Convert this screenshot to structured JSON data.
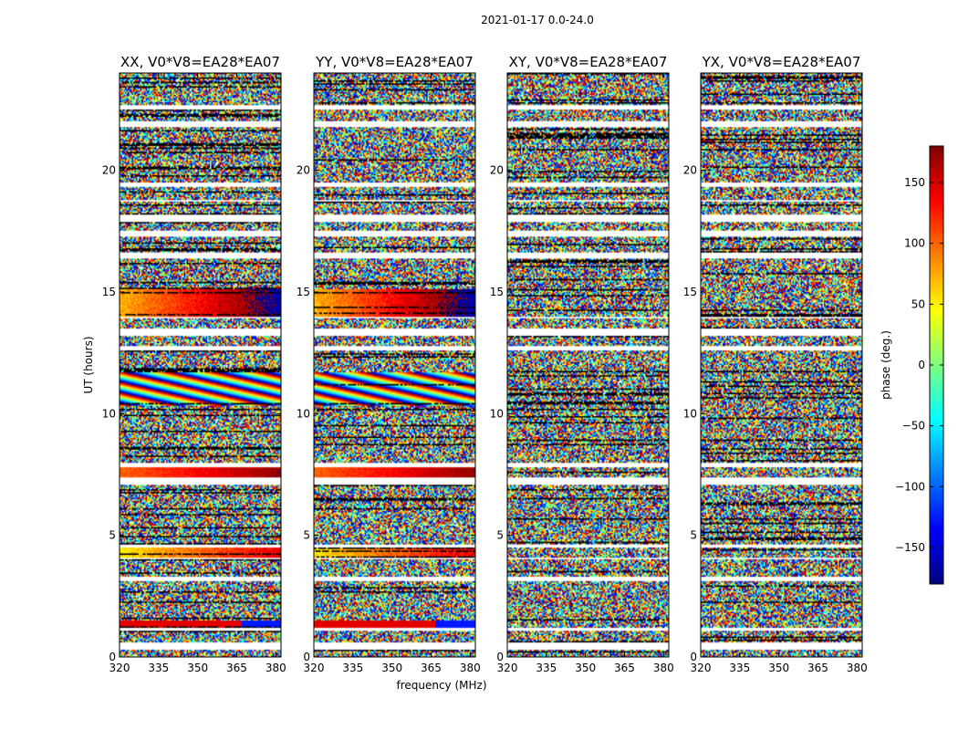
{
  "chart_data": {
    "type": "heatmap",
    "suptitle": "2021-01-17 0.0-24.0",
    "xlabel": "frequency (MHz)",
    "ylabel": "UT (hours)",
    "xlim": [
      320,
      382
    ],
    "ylim": [
      0,
      24
    ],
    "xticks": [
      320,
      335,
      350,
      365,
      380
    ],
    "yticks": [
      0,
      5,
      10,
      15,
      20
    ],
    "panels": [
      {
        "title": "XX, V0*V8=EA28*EA07",
        "pol": "XX",
        "coherent": true
      },
      {
        "title": "YY, V0*V8=EA28*EA07",
        "pol": "YY",
        "coherent": true
      },
      {
        "title": "XY, V0*V8=EA28*EA07",
        "pol": "XY",
        "coherent": false
      },
      {
        "title": "YX, V0*V8=EA28*EA07",
        "pol": "YX",
        "coherent": false
      }
    ],
    "flagged_bands_ut": [
      [
        0.3,
        0.6
      ],
      [
        1.1,
        1.2
      ],
      [
        3.1,
        3.3
      ],
      [
        4.0,
        4.1
      ],
      [
        4.5,
        4.6
      ],
      [
        7.1,
        7.4
      ],
      [
        7.8,
        8.0
      ],
      [
        12.6,
        12.8
      ],
      [
        13.2,
        13.5
      ],
      [
        13.9,
        14.0
      ],
      [
        16.4,
        16.6
      ],
      [
        17.3,
        17.5
      ],
      [
        17.9,
        18.2
      ],
      [
        18.7,
        18.8
      ],
      [
        19.3,
        19.5
      ],
      [
        21.8,
        22.0
      ],
      [
        22.5,
        22.7
      ]
    ],
    "colorbar": {
      "label": "phase (deg.)",
      "range": [
        -180,
        180
      ],
      "ticks": [
        -150,
        -100,
        -50,
        0,
        50,
        100,
        150
      ],
      "tick_labels": [
        "−150",
        "−100",
        "−50",
        "0",
        "50",
        "100",
        "150"
      ],
      "colormap": [
        "#00007f",
        "#0000ff",
        "#007fff",
        "#00ffff",
        "#7fff7f",
        "#ffff00",
        "#ff7f00",
        "#ff0000",
        "#7f0000"
      ]
    }
  }
}
